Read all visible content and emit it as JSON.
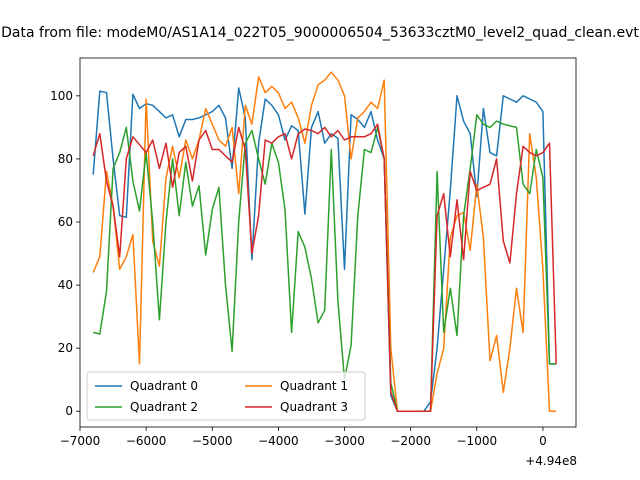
{
  "chart_data": {
    "type": "line",
    "title": "Data from file: modeM0/AS1A14_022T05_9000006504_53633cztM0_level2_quad_clean.evt",
    "xlabel": "",
    "ylabel": "",
    "x_offset_label": "+4.94e8",
    "xlim": [
      -7000,
      500
    ],
    "ylim": [
      -5,
      112
    ],
    "x_ticks": [
      -7000,
      -6000,
      -5000,
      -4000,
      -3000,
      -2000,
      -1000,
      0
    ],
    "x_tick_labels": [
      "−7000",
      "−6000",
      "−5000",
      "−4000",
      "−3000",
      "−2000",
      "−1000",
      "0"
    ],
    "y_ticks": [
      0,
      20,
      40,
      60,
      80,
      100
    ],
    "y_tick_labels": [
      "0",
      "20",
      "40",
      "60",
      "80",
      "100"
    ],
    "grid": false,
    "legend": {
      "placement": "lower-left",
      "columns": 2
    },
    "x": [
      -6800,
      -6700,
      -6600,
      -6500,
      -6400,
      -6300,
      -6200,
      -6100,
      -6000,
      -5900,
      -5800,
      -5700,
      -5600,
      -5500,
      -5400,
      -5300,
      -5200,
      -5100,
      -5000,
      -4900,
      -4800,
      -4700,
      -4600,
      -4500,
      -4400,
      -4300,
      -4200,
      -4100,
      -4000,
      -3900,
      -3800,
      -3700,
      -3600,
      -3500,
      -3400,
      -3300,
      -3200,
      -3100,
      -3000,
      -2900,
      -2800,
      -2700,
      -2600,
      -2500,
      -2400,
      -2300,
      -2200,
      -2100,
      -2000,
      -1900,
      -1800,
      -1700,
      -1600,
      -1500,
      -1400,
      -1300,
      -1200,
      -1100,
      -1000,
      -900,
      -800,
      -700,
      -600,
      -500,
      -400,
      -300,
      -200,
      -100,
      0,
      100,
      200
    ],
    "series": [
      {
        "name": "Quadrant 0",
        "color": "#1f77b4",
        "values": [
          75,
          101.5,
          101,
          80,
          62,
          61.5,
          100.5,
          96,
          97.5,
          97,
          95,
          93,
          94,
          87,
          92.5,
          92.5,
          93,
          94,
          95,
          97,
          93,
          77,
          102.5,
          93,
          48,
          85,
          99,
          97,
          94,
          86,
          90.5,
          89,
          62.5,
          90,
          95,
          85,
          88,
          86.5,
          45,
          94,
          92.5,
          90,
          95,
          86,
          80,
          5,
          0,
          0,
          0,
          0,
          0,
          3,
          20,
          45,
          70,
          100,
          92,
          88,
          68,
          96,
          82,
          81,
          100,
          99,
          98,
          100,
          99,
          98,
          95,
          15,
          15
        ]
      },
      {
        "name": "Quadrant 1",
        "color": "#ff7f0e",
        "values": [
          44,
          49,
          76,
          65,
          45,
          49,
          56,
          15,
          99,
          54,
          46,
          74,
          84,
          74,
          86,
          80,
          86,
          96,
          91,
          86,
          84,
          90,
          69,
          97,
          91,
          106,
          101,
          103,
          101,
          96,
          98,
          93,
          85,
          97,
          103.5,
          105,
          107.5,
          105,
          100,
          80,
          93,
          95,
          98,
          96,
          105,
          20,
          0,
          0,
          0,
          0,
          0,
          0,
          12,
          20,
          55,
          62,
          63,
          51,
          72,
          55,
          16,
          24,
          6,
          20,
          39,
          25,
          88,
          74,
          45,
          0,
          0
        ]
      },
      {
        "name": "Quadrant 2",
        "color": "#2ca02c",
        "values": [
          25,
          24.5,
          38,
          77,
          82,
          90,
          73,
          63.5,
          82,
          60,
          29,
          60,
          80,
          62,
          79,
          65,
          71.5,
          49.5,
          64,
          71,
          40,
          19,
          60,
          85,
          89,
          80,
          72,
          85,
          79,
          64,
          25,
          57,
          52,
          42,
          28,
          32,
          83,
          35,
          10,
          21,
          62,
          83,
          82,
          90,
          80,
          9,
          0,
          0,
          0,
          0,
          0,
          0,
          76,
          25,
          39,
          24,
          62,
          77,
          94,
          91,
          90,
          92,
          91,
          90.5,
          90,
          72,
          69,
          83,
          74,
          15,
          15
        ]
      },
      {
        "name": "Quadrant 3",
        "color": "#d62728",
        "values": [
          81,
          88,
          73,
          65,
          49,
          80,
          87,
          84.5,
          82,
          86,
          77,
          85,
          71,
          82,
          84,
          73,
          86,
          89,
          83,
          83,
          81,
          79,
          90,
          83,
          50,
          62,
          86,
          85,
          87,
          88,
          80,
          88,
          89.5,
          89,
          88,
          90,
          87,
          89,
          86,
          87,
          87,
          87,
          88,
          91,
          80,
          6,
          0,
          0,
          0,
          0,
          0,
          0,
          62,
          69,
          49,
          67,
          48,
          76,
          70,
          71,
          72,
          80,
          54,
          47,
          69,
          84,
          82,
          81,
          82,
          85,
          15
        ]
      }
    ]
  }
}
